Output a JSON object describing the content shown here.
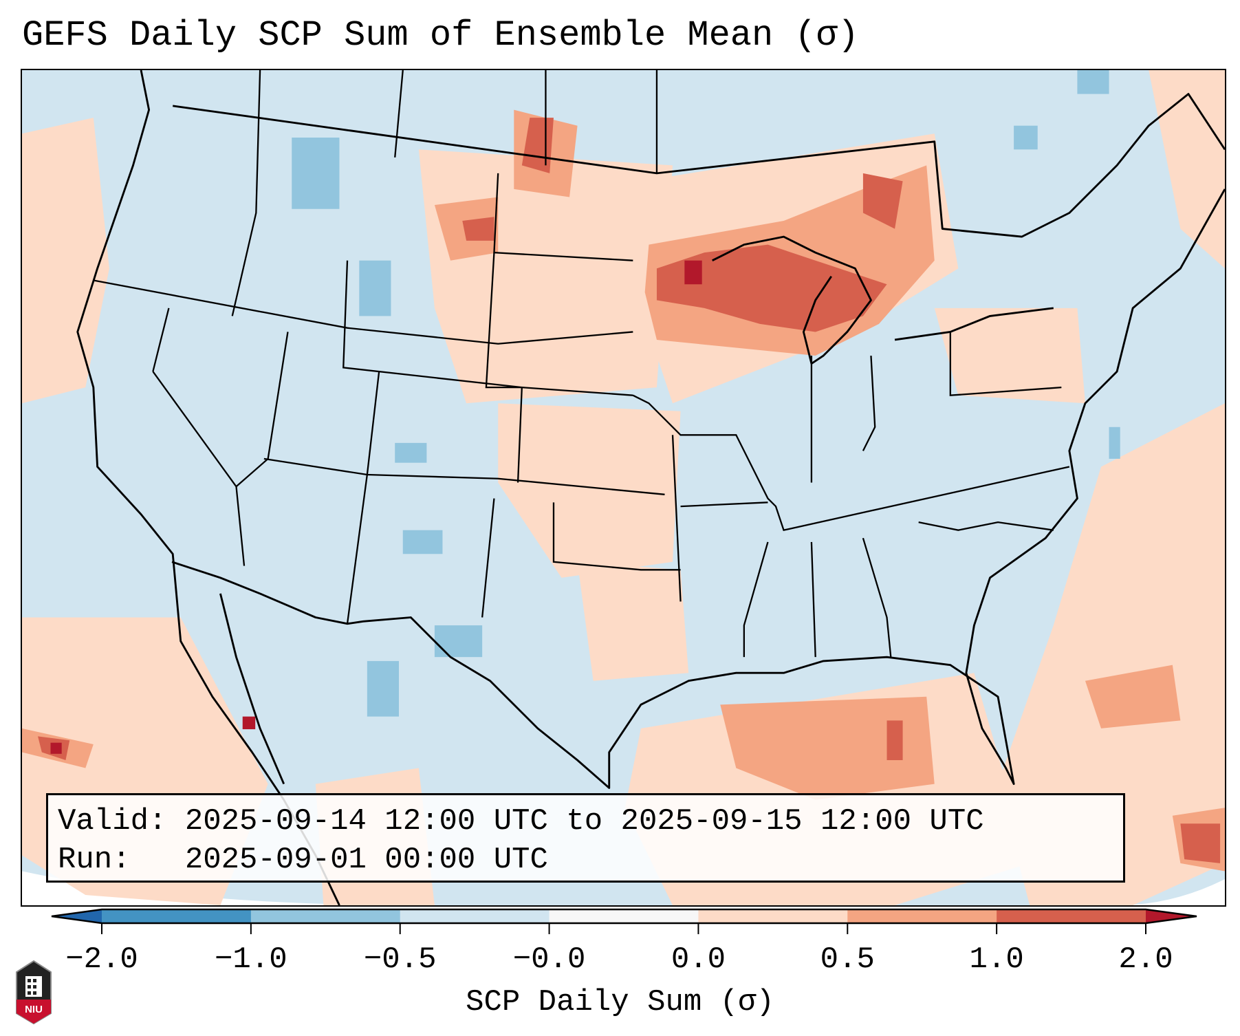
{
  "title": "GEFS Daily SCP Sum of Ensemble Mean (σ)",
  "info": {
    "valid_label": "Valid:",
    "valid_value": "2025-09-14 12:00 UTC to 2025-09-15 12:00 UTC",
    "run_label": "Run:",
    "run_value": "2025-09-01 00:00 UTC"
  },
  "colorbar": {
    "label": "SCP Daily Sum (σ)",
    "ticks": [
      "−2.0",
      "−1.0",
      "−0.5",
      "−0.0",
      "0.0",
      "0.5",
      "1.0",
      "2.0"
    ],
    "colors": [
      "#2166ac",
      "#4393c3",
      "#92c5de",
      "#d1e5f0",
      "#f7f7f7",
      "#fddbc7",
      "#f4a582",
      "#d6604d",
      "#b2182b"
    ]
  },
  "logo": {
    "text": "NIU"
  }
}
